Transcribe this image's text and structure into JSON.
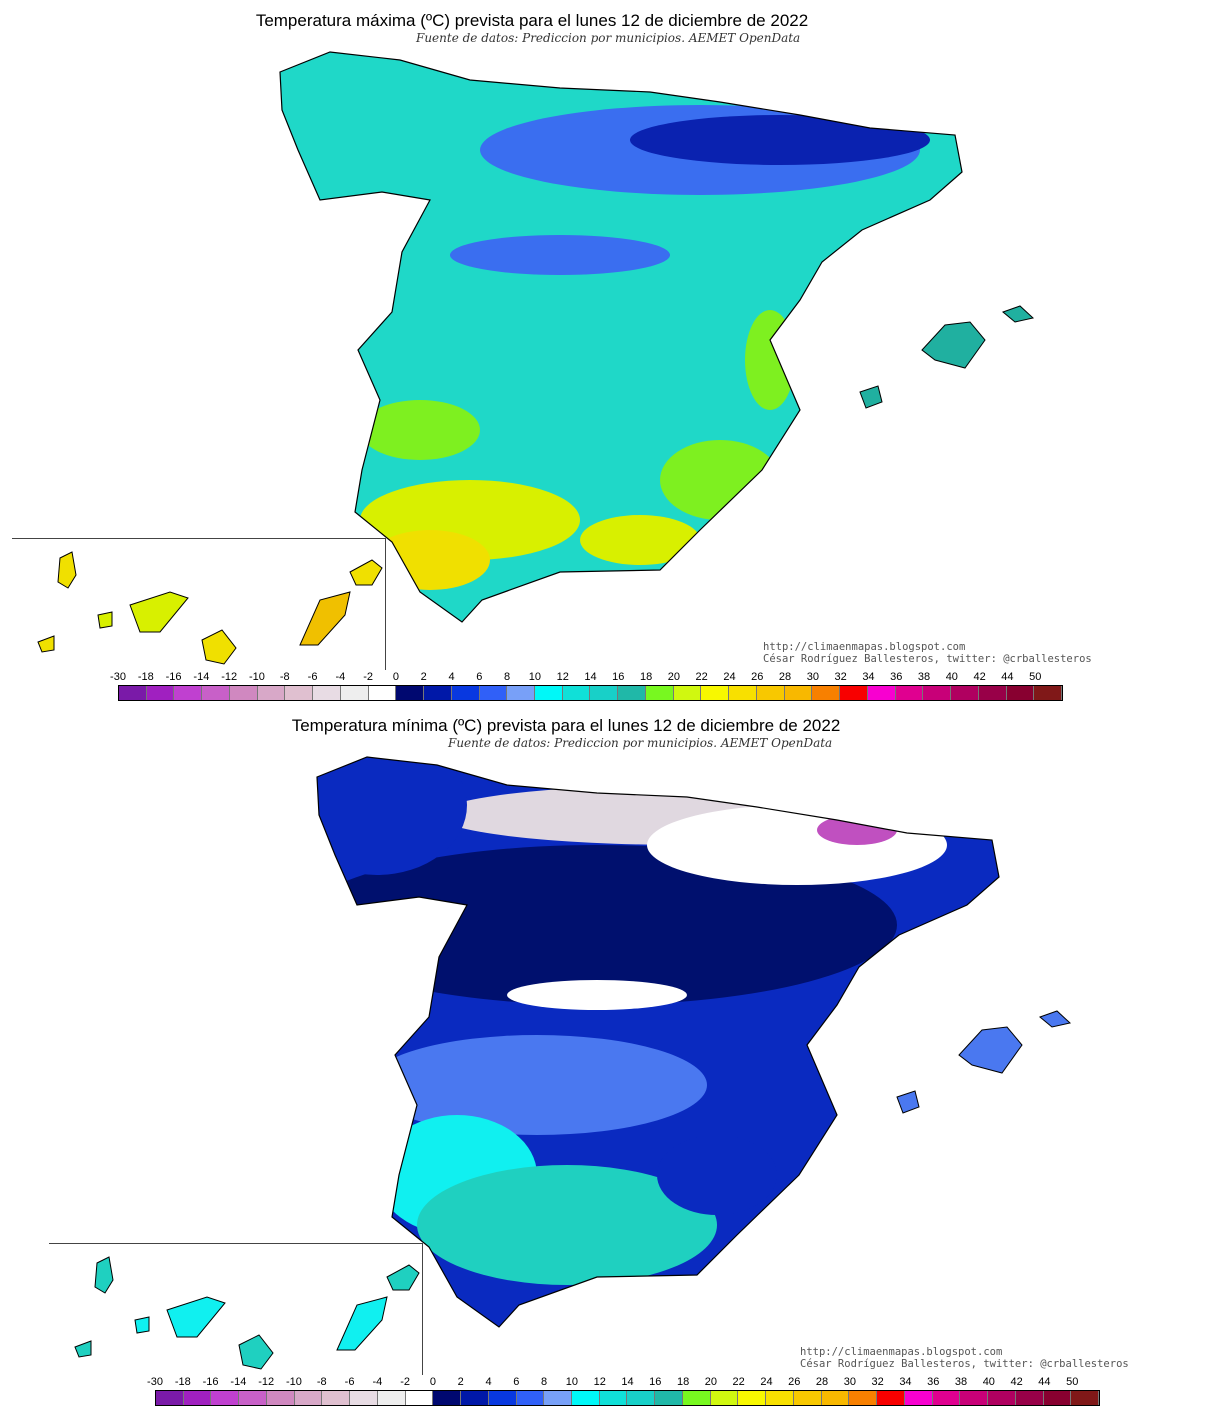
{
  "panels": [
    {
      "title": "Temperatura máxima (ºC) prevista para el lunes 12 de diciembre de 2022",
      "subtitle": "Fuente de datos: Prediccion por municipios. AEMET OpenData",
      "credit_url": "http://climaenmapas.blogspot.com",
      "credit_author": "César Rodríguez Ballesteros, twitter: @crballesteros",
      "dominant_colors": [
        "#1fd8c8",
        "#3a6ef0",
        "#0a22b0",
        "#7ef020",
        "#d8f000",
        "#f0e000"
      ]
    },
    {
      "title": "Temperatura mínima (ºC) prevista para el lunes 12 de diciembre de 2022",
      "subtitle": "Fuente de datos: Prediccion por municipios. AEMET OpenData",
      "credit_url": "http://climaenmapas.blogspot.com",
      "credit_author": "César Rodríguez Ballesteros, twitter: @crballesteros",
      "dominant_colors": [
        "#00106e",
        "#0a2ac0",
        "#ffffff",
        "#e0d8e0",
        "#c050c0",
        "#4a78f0",
        "#10f0f0",
        "#1fd0c0"
      ]
    }
  ],
  "legend": {
    "unit": "ºC",
    "labels": [
      "-30",
      "-18",
      "-16",
      "-14",
      "-12",
      "-10",
      "-8",
      "-6",
      "-4",
      "-2",
      "0",
      "2",
      "4",
      "6",
      "8",
      "10",
      "12",
      "14",
      "16",
      "18",
      "20",
      "22",
      "24",
      "26",
      "28",
      "30",
      "32",
      "34",
      "36",
      "38",
      "40",
      "42",
      "44",
      "50"
    ],
    "colors": [
      "#7a1aa8",
      "#a020c0",
      "#c040d0",
      "#c860c8",
      "#d088c0",
      "#d8a8c8",
      "#e0c0d0",
      "#e8dce4",
      "#eeeeee",
      "#ffffff",
      "#000870",
      "#0018a8",
      "#0838e0",
      "#3060f8",
      "#78a0f8",
      "#00f8f8",
      "#10e0d8",
      "#18d0c8",
      "#20b8a8",
      "#78f820",
      "#d0f810",
      "#f8f800",
      "#f8e000",
      "#f8c800",
      "#f8b800",
      "#f88000",
      "#f80000",
      "#f800d0",
      "#e00090",
      "#c80078",
      "#b00060",
      "#980048",
      "#880030",
      "#801818"
    ]
  }
}
